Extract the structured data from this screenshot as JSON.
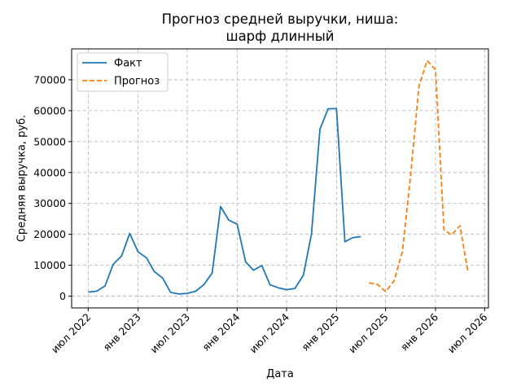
{
  "chart_data": {
    "type": "line",
    "title": [
      "Прогноз средней выручки, ниша:",
      "шарф длинный"
    ],
    "xlabel": "Дата",
    "ylabel": "Средняя выручка, руб.",
    "ylim": [
      -3800,
      80000
    ],
    "xlim": [
      "2022-05-01",
      "2026-07-15"
    ],
    "grid": true,
    "legend_position": "top-left",
    "x_ticks": [
      {
        "date": "2022-07-01",
        "label": "июл 2022"
      },
      {
        "date": "2023-01-01",
        "label": "янв 2023"
      },
      {
        "date": "2023-07-01",
        "label": "июл 2023"
      },
      {
        "date": "2024-01-01",
        "label": "янв 2024"
      },
      {
        "date": "2024-07-01",
        "label": "июл 2024"
      },
      {
        "date": "2025-01-01",
        "label": "янв 2025"
      },
      {
        "date": "2025-07-01",
        "label": "июл 2025"
      },
      {
        "date": "2026-01-01",
        "label": "янв 2026"
      },
      {
        "date": "2026-07-01",
        "label": "июл 2026"
      }
    ],
    "y_ticks": [
      0,
      10000,
      20000,
      30000,
      40000,
      50000,
      60000,
      70000
    ],
    "series": [
      {
        "name": "Факт",
        "color": "#1f77b4",
        "dash": "solid",
        "points": [
          [
            "2022-07-01",
            1300
          ],
          [
            "2022-08-01",
            1600
          ],
          [
            "2022-09-01",
            3300
          ],
          [
            "2022-10-01",
            10300
          ],
          [
            "2022-11-01",
            13000
          ],
          [
            "2022-12-01",
            20300
          ],
          [
            "2023-01-01",
            14300
          ],
          [
            "2023-02-01",
            12400
          ],
          [
            "2023-03-01",
            8000
          ],
          [
            "2023-04-01",
            5900
          ],
          [
            "2023-05-01",
            1200
          ],
          [
            "2023-06-01",
            700
          ],
          [
            "2023-07-01",
            900
          ],
          [
            "2023-08-01",
            1600
          ],
          [
            "2023-09-01",
            3800
          ],
          [
            "2023-10-01",
            7500
          ],
          [
            "2023-11-01",
            29000
          ],
          [
            "2023-12-01",
            24600
          ],
          [
            "2024-01-01",
            23300
          ],
          [
            "2024-02-01",
            11100
          ],
          [
            "2024-03-01",
            8400
          ],
          [
            "2024-04-01",
            9900
          ],
          [
            "2024-05-01",
            3700
          ],
          [
            "2024-06-01",
            2700
          ],
          [
            "2024-07-01",
            2100
          ],
          [
            "2024-08-01",
            2500
          ],
          [
            "2024-09-01",
            6800
          ],
          [
            "2024-10-01",
            20200
          ],
          [
            "2024-11-01",
            54000
          ],
          [
            "2024-12-01",
            60600
          ],
          [
            "2025-01-01",
            60700
          ],
          [
            "2025-02-01",
            17600
          ],
          [
            "2025-03-01",
            18900
          ],
          [
            "2025-04-01",
            19300
          ]
        ]
      },
      {
        "name": "Прогноз",
        "color": "#ff7f0e",
        "dash": "dashed",
        "points": [
          [
            "2025-05-01",
            4300
          ],
          [
            "2025-06-01",
            3800
          ],
          [
            "2025-07-01",
            1500
          ],
          [
            "2025-08-01",
            4900
          ],
          [
            "2025-09-01",
            14500
          ],
          [
            "2025-10-01",
            39000
          ],
          [
            "2025-11-01",
            68000
          ],
          [
            "2025-12-01",
            76200
          ],
          [
            "2026-01-01",
            73200
          ],
          [
            "2026-02-01",
            21500
          ],
          [
            "2026-03-01",
            19800
          ],
          [
            "2026-04-01",
            22800
          ],
          [
            "2026-05-01",
            7600
          ]
        ]
      }
    ]
  }
}
